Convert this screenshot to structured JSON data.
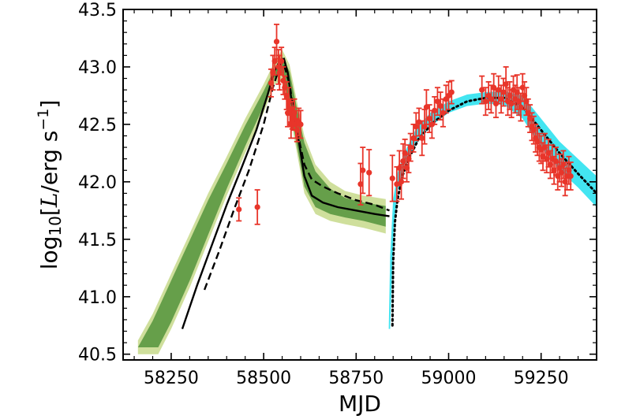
{
  "chart_data": {
    "type": "scatter",
    "title": "",
    "xlabel": "MJD",
    "ylabel": "log₁₀[L/erg s⁻¹]",
    "ylabel_parts": {
      "pre": "log",
      "sub": "10",
      "open": "[",
      "var": "L",
      "unit": "/erg s",
      "sup": "−1",
      "close": "]"
    },
    "xlim": [
      58120,
      59400
    ],
    "ylim": [
      40.45,
      43.5
    ],
    "xticks": [
      58250,
      58500,
      58750,
      59000,
      59250
    ],
    "yticks": [
      40.5,
      41.0,
      41.5,
      42.0,
      42.5,
      43.0,
      43.5
    ],
    "ytick_labels": [
      "40.5",
      "41.0",
      "41.5",
      "42.0",
      "42.5",
      "43.0",
      "43.5"
    ],
    "grid": false,
    "legend": "none",
    "colors": {
      "data": "#e8352a",
      "first_flare_band_dark": "#2e7d1e",
      "first_flare_band_light": "#a8c44a",
      "second_flare_band": "#22e0ee",
      "model_line": "#000000"
    },
    "series": [
      {
        "kind": "data-points",
        "points": [
          [
            58433,
            41.76,
            0.1
          ],
          [
            58483,
            41.78,
            0.15
          ],
          [
            58520,
            42.86,
            0.12
          ],
          [
            58525,
            42.95,
            0.15
          ],
          [
            58530,
            43.05,
            0.12
          ],
          [
            58535,
            43.22,
            0.15
          ],
          [
            58540,
            43.0,
            0.15
          ],
          [
            58543,
            42.95,
            0.15
          ],
          [
            58548,
            43.05,
            0.12
          ],
          [
            58553,
            42.88,
            0.12
          ],
          [
            58557,
            42.82,
            0.1
          ],
          [
            58562,
            42.75,
            0.12
          ],
          [
            58565,
            42.6,
            0.12
          ],
          [
            58568,
            42.7,
            0.12
          ],
          [
            58571,
            42.62,
            0.1
          ],
          [
            58574,
            42.5,
            0.12
          ],
          [
            58577,
            42.58,
            0.12
          ],
          [
            58580,
            42.55,
            0.1
          ],
          [
            58583,
            42.6,
            0.12
          ],
          [
            58587,
            42.5,
            0.12
          ],
          [
            58590,
            42.45,
            0.1
          ],
          [
            58595,
            42.52,
            0.12
          ],
          [
            58600,
            42.5,
            0.12
          ],
          [
            58762,
            41.98,
            0.18
          ],
          [
            58768,
            42.1,
            0.2
          ],
          [
            58785,
            42.08,
            0.2
          ],
          [
            58848,
            42.03,
            0.2
          ],
          [
            58860,
            41.98,
            0.15
          ],
          [
            58867,
            42.12,
            0.15
          ],
          [
            58872,
            42.0,
            0.15
          ],
          [
            58877,
            42.18,
            0.15
          ],
          [
            58882,
            42.25,
            0.12
          ],
          [
            58887,
            42.12,
            0.12
          ],
          [
            58892,
            42.2,
            0.12
          ],
          [
            58897,
            42.3,
            0.12
          ],
          [
            58905,
            42.38,
            0.12
          ],
          [
            58912,
            42.48,
            0.12
          ],
          [
            58920,
            42.52,
            0.12
          ],
          [
            58928,
            42.38,
            0.15
          ],
          [
            58935,
            42.48,
            0.15
          ],
          [
            58940,
            42.65,
            0.15
          ],
          [
            58948,
            42.55,
            0.12
          ],
          [
            58955,
            42.5,
            0.12
          ],
          [
            58962,
            42.62,
            0.12
          ],
          [
            58970,
            42.7,
            0.12
          ],
          [
            58978,
            42.66,
            0.12
          ],
          [
            58985,
            42.6,
            0.12
          ],
          [
            58993,
            42.72,
            0.12
          ],
          [
            59000,
            42.75,
            0.12
          ],
          [
            59008,
            42.78,
            0.1
          ],
          [
            59090,
            42.8,
            0.12
          ],
          [
            59100,
            42.7,
            0.12
          ],
          [
            59108,
            42.75,
            0.12
          ],
          [
            59115,
            42.72,
            0.12
          ],
          [
            59122,
            42.82,
            0.12
          ],
          [
            59128,
            42.68,
            0.12
          ],
          [
            59135,
            42.8,
            0.12
          ],
          [
            59142,
            42.72,
            0.12
          ],
          [
            59148,
            42.78,
            0.12
          ],
          [
            59155,
            42.85,
            0.15
          ],
          [
            59160,
            42.7,
            0.12
          ],
          [
            59165,
            42.75,
            0.12
          ],
          [
            59170,
            42.68,
            0.12
          ],
          [
            59175,
            42.8,
            0.12
          ],
          [
            59180,
            42.72,
            0.12
          ],
          [
            59185,
            42.78,
            0.15
          ],
          [
            59190,
            42.7,
            0.12
          ],
          [
            59195,
            42.65,
            0.12
          ],
          [
            59200,
            42.82,
            0.12
          ],
          [
            59205,
            42.75,
            0.12
          ],
          [
            59210,
            42.7,
            0.12
          ],
          [
            59215,
            42.6,
            0.12
          ],
          [
            59220,
            42.55,
            0.12
          ],
          [
            59225,
            42.48,
            0.12
          ],
          [
            59230,
            42.45,
            0.12
          ],
          [
            59235,
            42.38,
            0.12
          ],
          [
            59240,
            42.35,
            0.12
          ],
          [
            59245,
            42.3,
            0.12
          ],
          [
            59250,
            42.28,
            0.12
          ],
          [
            59255,
            42.22,
            0.12
          ],
          [
            59260,
            42.3,
            0.12
          ],
          [
            59265,
            42.2,
            0.12
          ],
          [
            59270,
            42.25,
            0.12
          ],
          [
            59275,
            42.15,
            0.12
          ],
          [
            59280,
            42.2,
            0.12
          ],
          [
            59285,
            42.1,
            0.12
          ],
          [
            59290,
            42.18,
            0.12
          ],
          [
            59295,
            42.05,
            0.12
          ],
          [
            59300,
            42.12,
            0.12
          ],
          [
            59305,
            42.08,
            0.12
          ],
          [
            59310,
            42.15,
            0.12
          ],
          [
            59315,
            42.0,
            0.12
          ],
          [
            59320,
            42.05,
            0.12
          ],
          [
            59325,
            42.1,
            0.12
          ],
          [
            59330,
            42.05,
            0.12
          ]
        ]
      },
      {
        "kind": "model-solid",
        "points": [
          [
            58280,
            40.72
          ],
          [
            58320,
            41.1
          ],
          [
            58360,
            41.45
          ],
          [
            58400,
            41.8
          ],
          [
            58440,
            42.12
          ],
          [
            58480,
            42.45
          ],
          [
            58510,
            42.75
          ],
          [
            58530,
            42.97
          ],
          [
            58545,
            43.06
          ],
          [
            58555,
            43.07
          ],
          [
            58565,
            42.95
          ],
          [
            58580,
            42.6
          ],
          [
            58595,
            42.35
          ],
          [
            58610,
            42.05
          ],
          [
            58630,
            41.88
          ],
          [
            58660,
            41.82
          ],
          [
            58700,
            41.78
          ],
          [
            58750,
            41.75
          ],
          [
            58800,
            41.72
          ],
          [
            58840,
            41.7
          ]
        ]
      },
      {
        "kind": "model-dashed",
        "points": [
          [
            58340,
            41.06
          ],
          [
            58380,
            41.4
          ],
          [
            58420,
            41.76
          ],
          [
            58460,
            42.1
          ],
          [
            58500,
            42.5
          ],
          [
            58525,
            42.82
          ],
          [
            58545,
            43.02
          ],
          [
            58555,
            43.02
          ],
          [
            58570,
            42.85
          ],
          [
            58590,
            42.45
          ],
          [
            58610,
            42.15
          ],
          [
            58630,
            42.02
          ],
          [
            58660,
            41.96
          ],
          [
            58700,
            41.9
          ],
          [
            58750,
            41.84
          ],
          [
            58800,
            41.8
          ],
          [
            58840,
            41.75
          ]
        ]
      },
      {
        "kind": "model-dotted",
        "points": [
          [
            58848,
            40.75
          ],
          [
            58850,
            41.3
          ],
          [
            58855,
            41.65
          ],
          [
            58862,
            41.85
          ],
          [
            58875,
            42.05
          ],
          [
            58895,
            42.22
          ],
          [
            58920,
            42.38
          ],
          [
            58960,
            42.52
          ],
          [
            59000,
            42.62
          ],
          [
            59050,
            42.7
          ],
          [
            59100,
            42.73
          ],
          [
            59150,
            42.73
          ],
          [
            59200,
            42.65
          ],
          [
            59250,
            42.45
          ],
          [
            59300,
            42.25
          ],
          [
            59350,
            42.07
          ],
          [
            59400,
            41.9
          ]
        ]
      }
    ],
    "bands": [
      {
        "kind": "first-flare-posterior",
        "upper": [
          [
            58160,
            40.62
          ],
          [
            58200,
            40.85
          ],
          [
            58250,
            41.2
          ],
          [
            58300,
            41.55
          ],
          [
            58350,
            41.9
          ],
          [
            58400,
            42.22
          ],
          [
            58450,
            42.55
          ],
          [
            58500,
            42.85
          ],
          [
            58530,
            43.05
          ],
          [
            58550,
            43.15
          ],
          [
            58570,
            43.02
          ],
          [
            58590,
            42.7
          ],
          [
            58610,
            42.4
          ],
          [
            58640,
            42.15
          ],
          [
            58680,
            42.0
          ],
          [
            58720,
            41.92
          ],
          [
            58770,
            41.88
          ],
          [
            58830,
            41.85
          ]
        ],
        "lower": [
          [
            58830,
            41.55
          ],
          [
            58770,
            41.6
          ],
          [
            58720,
            41.63
          ],
          [
            58680,
            41.66
          ],
          [
            58640,
            41.72
          ],
          [
            58610,
            41.9
          ],
          [
            58590,
            42.25
          ],
          [
            58570,
            42.6
          ],
          [
            58550,
            42.88
          ],
          [
            58530,
            42.85
          ],
          [
            58500,
            42.6
          ],
          [
            58450,
            42.25
          ],
          [
            58400,
            41.88
          ],
          [
            58350,
            41.48
          ],
          [
            58300,
            41.08
          ],
          [
            58250,
            40.72
          ],
          [
            58215,
            40.5
          ],
          [
            58160,
            40.5
          ]
        ]
      },
      {
        "kind": "second-flare-posterior",
        "upper": [
          [
            58838,
            40.72
          ],
          [
            58842,
            41.35
          ],
          [
            58850,
            41.85
          ],
          [
            58862,
            42.08
          ],
          [
            58880,
            42.25
          ],
          [
            58910,
            42.45
          ],
          [
            58950,
            42.6
          ],
          [
            59000,
            42.7
          ],
          [
            59050,
            42.76
          ],
          [
            59100,
            42.78
          ],
          [
            59150,
            42.79
          ],
          [
            59200,
            42.75
          ],
          [
            59250,
            42.55
          ],
          [
            59300,
            42.35
          ],
          [
            59350,
            42.2
          ],
          [
            59400,
            42.05
          ]
        ],
        "lower": [
          [
            59400,
            41.78
          ],
          [
            59350,
            41.95
          ],
          [
            59300,
            42.1
          ],
          [
            59250,
            42.3
          ],
          [
            59200,
            42.55
          ],
          [
            59150,
            42.67
          ],
          [
            59100,
            42.68
          ],
          [
            59050,
            42.66
          ],
          [
            59000,
            42.6
          ],
          [
            58950,
            42.48
          ],
          [
            58910,
            42.32
          ],
          [
            58880,
            42.1
          ],
          [
            58862,
            41.92
          ],
          [
            58852,
            41.6
          ],
          [
            58846,
            41.1
          ],
          [
            58842,
            40.72
          ]
        ]
      }
    ]
  }
}
